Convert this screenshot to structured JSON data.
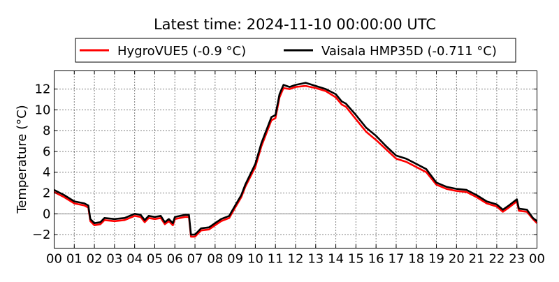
{
  "chart_data": {
    "type": "line",
    "title": "Latest time: 2024-11-10 00:00:00 UTC",
    "xlabel": "",
    "ylabel": "Temperature (°C)",
    "xlim": [
      0,
      24
    ],
    "ylim": [
      -3.3,
      13.75
    ],
    "grid": true,
    "legend_placement": "top-center",
    "xticks": [
      0,
      1,
      2,
      3,
      4,
      5,
      6,
      7,
      8,
      9,
      10,
      11,
      12,
      13,
      14,
      15,
      16,
      17,
      18,
      19,
      20,
      21,
      22,
      23,
      24
    ],
    "xtick_labels": [
      "00",
      "01",
      "02",
      "03",
      "04",
      "05",
      "06",
      "07",
      "08",
      "09",
      "10",
      "11",
      "12",
      "13",
      "14",
      "15",
      "16",
      "17",
      "18",
      "19",
      "20",
      "21",
      "22",
      "23",
      "00"
    ],
    "yticks": [
      -2,
      0,
      2,
      4,
      6,
      8,
      10,
      12
    ],
    "ytick_labels": [
      "−2",
      "0",
      "2",
      "4",
      "6",
      "8",
      "10",
      "12"
    ],
    "x": [
      0,
      0.5,
      1,
      1.5,
      1.7,
      1.8,
      2.0,
      2.3,
      2.5,
      3,
      3.5,
      4,
      4.3,
      4.5,
      4.7,
      5,
      5.3,
      5.5,
      5.7,
      5.9,
      6,
      6.5,
      6.7,
      6.8,
      7,
      7.3,
      7.7,
      8,
      8.3,
      8.7,
      9,
      9.3,
      9.5,
      10,
      10.3,
      10.6,
      10.8,
      11,
      11.2,
      11.4,
      11.7,
      12,
      12.5,
      13,
      13.5,
      14,
      14.3,
      14.5,
      15,
      15.5,
      16,
      16.5,
      17,
      17.5,
      18,
      18.5,
      19,
      19.5,
      20,
      20.5,
      21,
      21.5,
      22,
      22.3,
      22.6,
      23,
      23.1,
      23.5,
      23.8,
      24
    ],
    "series": [
      {
        "name": "HygroVUE5 (-0.9 °C)",
        "color": "#ff0000",
        "values": [
          2.1,
          1.6,
          1.0,
          0.8,
          0.6,
          -0.7,
          -1.1,
          -1.0,
          -0.6,
          -0.7,
          -0.6,
          -0.2,
          -0.3,
          -0.8,
          -0.4,
          -0.5,
          -0.4,
          -1.0,
          -0.7,
          -1.1,
          -0.5,
          -0.3,
          -0.3,
          -2.2,
          -2.2,
          -1.6,
          -1.5,
          -1.1,
          -0.7,
          -0.4,
          0.6,
          1.6,
          2.6,
          4.5,
          6.5,
          8.0,
          9.0,
          9.2,
          11.2,
          12.1,
          12.0,
          12.2,
          12.3,
          12.1,
          11.8,
          11.2,
          10.5,
          10.3,
          9.1,
          7.9,
          7.1,
          6.2,
          5.3,
          5.0,
          4.5,
          4.0,
          2.8,
          2.4,
          2.2,
          2.1,
          1.6,
          1.0,
          0.7,
          0.2,
          0.6,
          1.2,
          0.3,
          0.2,
          -0.5,
          -0.9
        ]
      },
      {
        "name": "Vaisala HMP35D (-0.711 °C)",
        "color": "#000000",
        "values": [
          2.3,
          1.8,
          1.2,
          1.0,
          0.8,
          -0.5,
          -0.9,
          -0.8,
          -0.4,
          -0.5,
          -0.4,
          0.0,
          -0.1,
          -0.6,
          -0.2,
          -0.3,
          -0.2,
          -0.8,
          -0.5,
          -0.9,
          -0.3,
          -0.1,
          -0.1,
          -2.0,
          -2.0,
          -1.4,
          -1.3,
          -0.9,
          -0.5,
          -0.2,
          0.8,
          1.8,
          2.8,
          4.8,
          6.8,
          8.3,
          9.3,
          9.5,
          11.5,
          12.4,
          12.2,
          12.4,
          12.6,
          12.3,
          12.0,
          11.5,
          10.8,
          10.6,
          9.5,
          8.3,
          7.5,
          6.5,
          5.6,
          5.3,
          4.8,
          4.3,
          3.0,
          2.6,
          2.4,
          2.3,
          1.8,
          1.2,
          0.9,
          0.4,
          0.8,
          1.4,
          0.5,
          0.4,
          -0.4,
          -0.7
        ]
      }
    ]
  }
}
